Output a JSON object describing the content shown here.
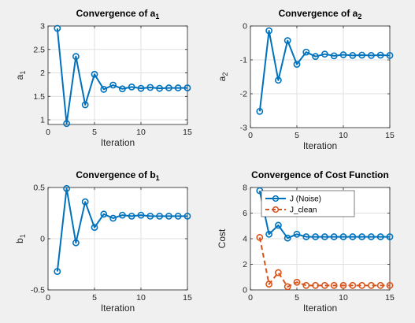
{
  "chart_data": [
    {
      "type": "line",
      "title": "Convergence of a",
      "title_sub": "1",
      "xlabel": "Iteration",
      "ylabel": "a",
      "ylabel_sub": "1",
      "xlim": [
        0,
        15
      ],
      "ylim": [
        0.9,
        3
      ],
      "xticks": [
        0,
        5,
        10,
        15
      ],
      "yticks": [
        1,
        1.5,
        2,
        2.5,
        3
      ],
      "grid": true,
      "x": [
        1,
        2,
        3,
        4,
        5,
        6,
        7,
        8,
        9,
        10,
        11,
        12,
        13,
        14,
        15
      ],
      "series": [
        {
          "color": "#0072BD",
          "style": "solid",
          "marker": "circle",
          "values": [
            2.95,
            0.92,
            2.35,
            1.32,
            1.97,
            1.65,
            1.74,
            1.66,
            1.7,
            1.67,
            1.69,
            1.67,
            1.68,
            1.68,
            1.68
          ]
        }
      ]
    },
    {
      "type": "line",
      "title": "Convergence of a",
      "title_sub": "2",
      "xlabel": "Iteration",
      "ylabel": "a",
      "ylabel_sub": "2",
      "xlim": [
        0,
        15
      ],
      "ylim": [
        -3,
        0
      ],
      "xticks": [
        0,
        5,
        10,
        15
      ],
      "yticks": [
        -3,
        -2,
        -1,
        0
      ],
      "grid": true,
      "x": [
        1,
        2,
        3,
        4,
        5,
        6,
        7,
        8,
        9,
        10,
        11,
        12,
        13,
        14,
        15
      ],
      "series": [
        {
          "color": "#0072BD",
          "style": "solid",
          "marker": "circle",
          "values": [
            -2.52,
            -0.14,
            -1.6,
            -0.43,
            -1.13,
            -0.77,
            -0.9,
            -0.83,
            -0.88,
            -0.85,
            -0.87,
            -0.86,
            -0.87,
            -0.86,
            -0.87
          ]
        }
      ]
    },
    {
      "type": "line",
      "title": "Convergence of b",
      "title_sub": "1",
      "xlabel": "Iteration",
      "ylabel": "b",
      "ylabel_sub": "1",
      "xlim": [
        0,
        15
      ],
      "ylim": [
        -0.5,
        0.5
      ],
      "xticks": [
        0,
        5,
        10,
        15
      ],
      "yticks": [
        -0.5,
        0,
        0.5
      ],
      "grid": true,
      "x": [
        1,
        2,
        3,
        4,
        5,
        6,
        7,
        8,
        9,
        10,
        11,
        12,
        13,
        14,
        15
      ],
      "series": [
        {
          "color": "#0072BD",
          "style": "solid",
          "marker": "circle",
          "values": [
            -0.32,
            0.49,
            -0.04,
            0.36,
            0.11,
            0.24,
            0.2,
            0.23,
            0.22,
            0.23,
            0.22,
            0.22,
            0.22,
            0.22,
            0.22
          ]
        }
      ]
    },
    {
      "type": "line",
      "title": "Convergence of Cost Function",
      "title_sub": "",
      "xlabel": "Iteration",
      "ylabel": "Cost",
      "ylabel_sub": "",
      "xlim": [
        0,
        15
      ],
      "ylim": [
        0,
        8
      ],
      "xticks": [
        0,
        5,
        10,
        15
      ],
      "yticks": [
        0,
        2,
        4,
        6,
        8
      ],
      "grid": true,
      "legend": "top-center",
      "x": [
        1,
        2,
        3,
        4,
        5,
        6,
        7,
        8,
        9,
        10,
        11,
        12,
        13,
        14,
        15
      ],
      "series": [
        {
          "name": "J (Noise)",
          "color": "#0072BD",
          "style": "solid",
          "marker": "circle",
          "values": [
            7.75,
            4.35,
            5.05,
            4.05,
            4.35,
            4.15,
            4.15,
            4.15,
            4.15,
            4.15,
            4.15,
            4.15,
            4.15,
            4.15,
            4.15
          ]
        },
        {
          "name": "J_clean",
          "color": "#D95319",
          "style": "dashed",
          "marker": "circle",
          "values": [
            4.1,
            0.45,
            1.35,
            0.25,
            0.6,
            0.35,
            0.35,
            0.35,
            0.35,
            0.35,
            0.35,
            0.35,
            0.35,
            0.35,
            0.35
          ]
        }
      ]
    }
  ]
}
